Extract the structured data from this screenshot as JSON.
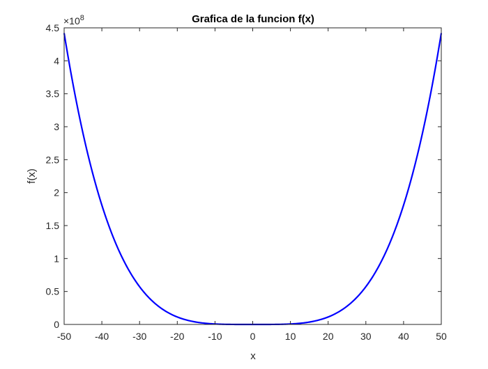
{
  "chart_data": {
    "type": "line",
    "title": "Grafica de la funcion f(x)",
    "xlabel": "x",
    "ylabel": "f(x)",
    "xlim": [
      -50,
      50
    ],
    "ylim": [
      0,
      450000000
    ],
    "y_exponent": {
      "base": "×10",
      "power": "8"
    },
    "x_ticks": [
      -50,
      -40,
      -30,
      -20,
      -10,
      0,
      10,
      20,
      30,
      40,
      50
    ],
    "x_tick_labels": [
      "-50",
      "-40",
      "-30",
      "-20",
      "-10",
      "0",
      "10",
      "20",
      "30",
      "40",
      "50"
    ],
    "y_ticks": [
      0,
      50000000,
      100000000,
      150000000,
      200000000,
      250000000,
      300000000,
      350000000,
      400000000,
      450000000
    ],
    "y_tick_labels": [
      "0",
      "0.5",
      "1",
      "1.5",
      "2",
      "2.5",
      "3",
      "3.5",
      "4",
      "4.5"
    ],
    "grid": false,
    "series": [
      {
        "color": "#0000ff",
        "x": [
          -50,
          -45,
          -40,
          -35,
          -30,
          -25,
          -20,
          -15,
          -10,
          -5,
          0,
          5,
          10,
          15,
          20,
          25,
          30,
          35,
          40,
          45,
          50
        ],
        "y": [
          442000000,
          290000000,
          181000000,
          106100000,
          57300000,
          27600000,
          11300000,
          3580000,
          707000,
          44200,
          0,
          44200,
          707000,
          3580000,
          11300000,
          27600000,
          57300000,
          106100000,
          181000000,
          290000000,
          442000000
        ]
      }
    ]
  }
}
